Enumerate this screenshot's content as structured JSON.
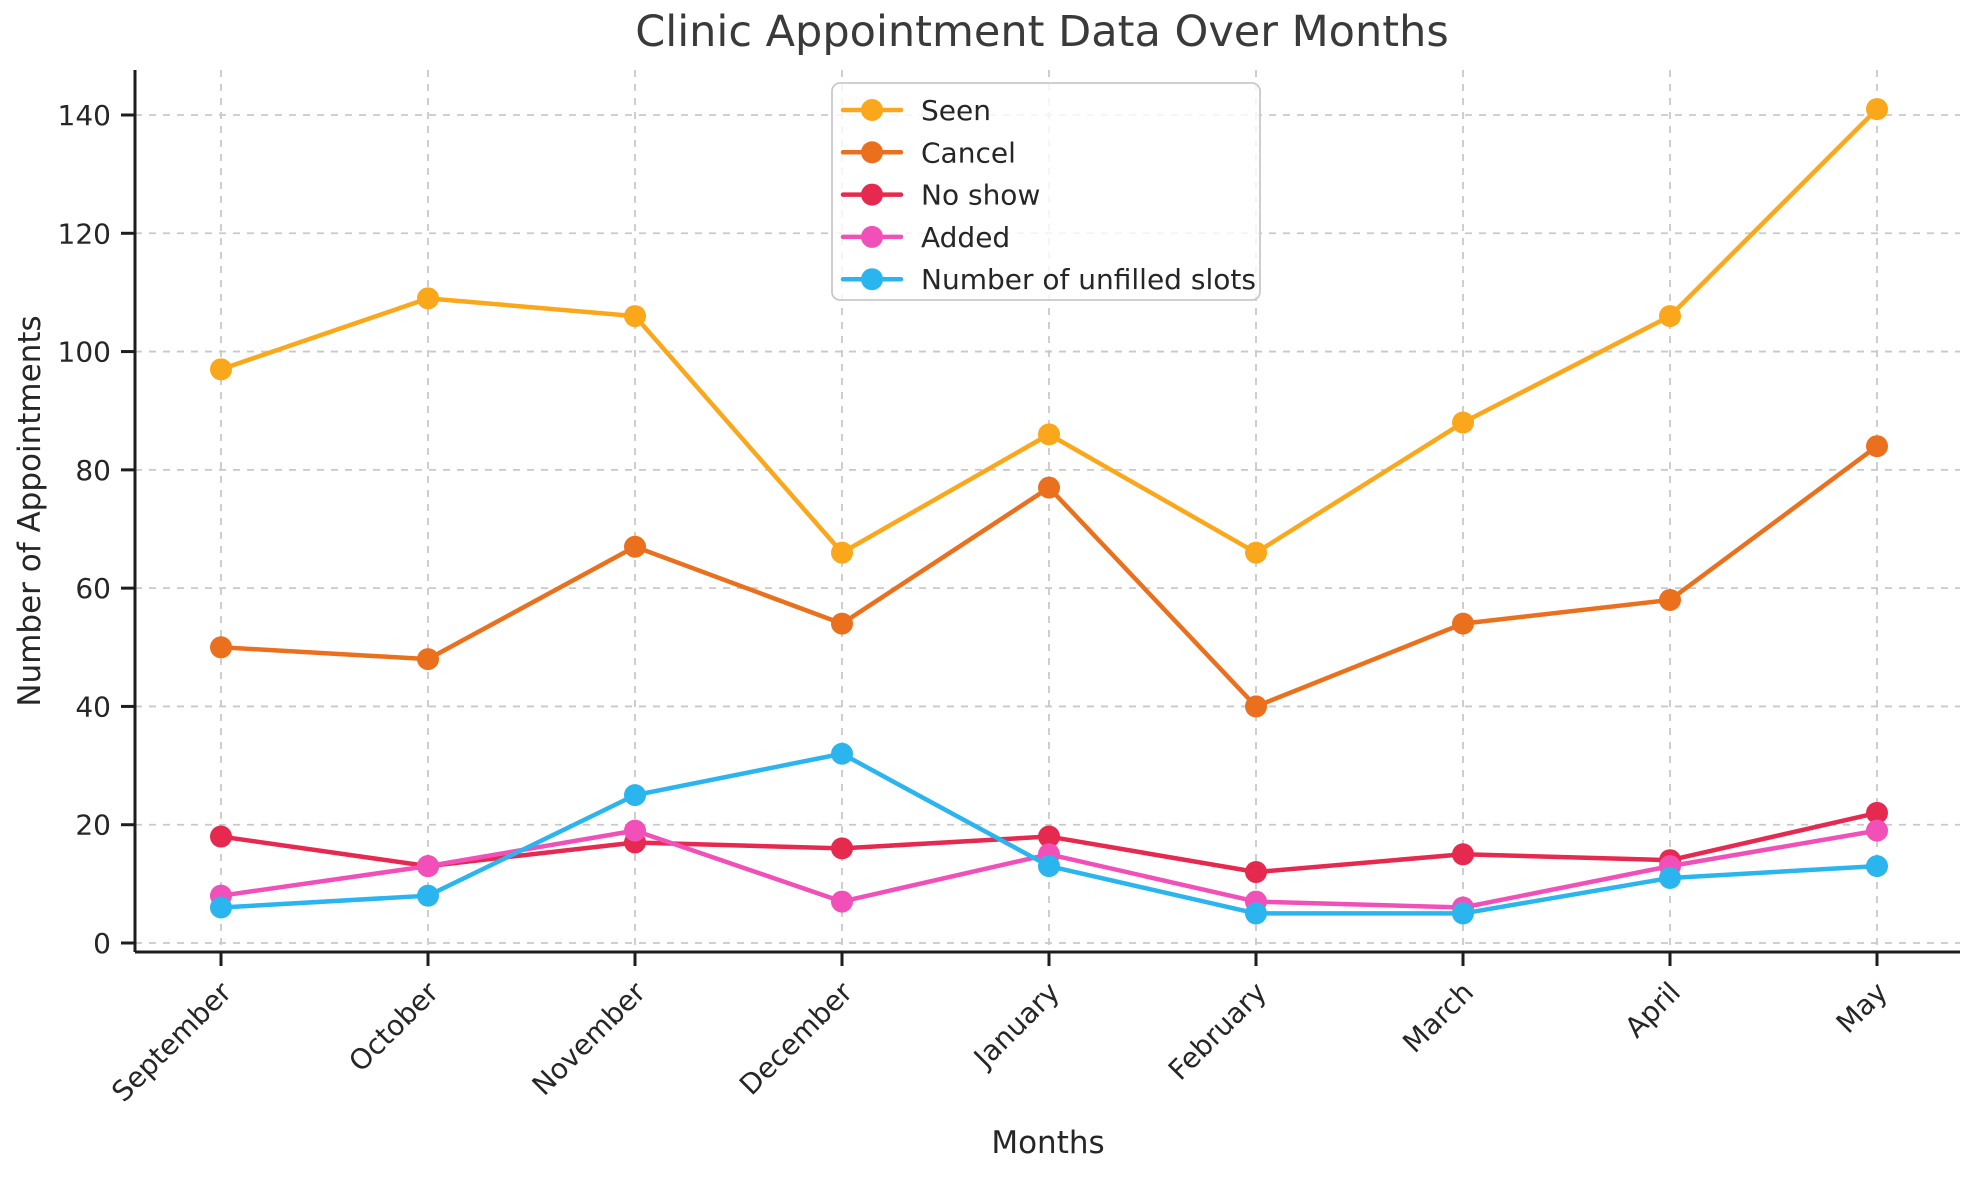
{
  "chart_data": {
    "type": "line",
    "title": "Clinic Appointment Data Over Months",
    "xlabel": "Months",
    "ylabel": "Number of Appointments",
    "categories": [
      "September",
      "October",
      "November",
      "December",
      "January",
      "February",
      "March",
      "April",
      "May"
    ],
    "series": [
      {
        "name": "Seen",
        "color": "#FBA71B",
        "values": [
          97,
          109,
          106,
          66,
          86,
          66,
          88,
          106,
          141
        ]
      },
      {
        "name": "Cancel",
        "color": "#EB701E",
        "values": [
          50,
          48,
          67,
          54,
          77,
          40,
          54,
          58,
          84
        ]
      },
      {
        "name": "No show",
        "color": "#E6294E",
        "values": [
          18,
          13,
          17,
          16,
          18,
          12,
          15,
          14,
          22
        ]
      },
      {
        "name": "Added",
        "color": "#F150B9",
        "values": [
          8,
          13,
          19,
          7,
          15,
          7,
          6,
          13,
          19
        ]
      },
      {
        "name": "Number of unfilled slots",
        "color": "#2BB5EE",
        "values": [
          6,
          8,
          25,
          32,
          13,
          5,
          5,
          11,
          13
        ]
      }
    ],
    "ylim": [
      0,
      148
    ],
    "yticks": [
      0,
      20,
      40,
      60,
      80,
      100,
      120,
      140
    ],
    "grid": true,
    "grid_style": "dashed",
    "marker": "circle",
    "legend_position": "upper center",
    "colors": {
      "grid": "#c9c9c9",
      "spine": "#1d1d1d",
      "tick_text": "#262626",
      "title_text": "#3a3a3a",
      "legend_border": "#c9c9c9"
    }
  }
}
